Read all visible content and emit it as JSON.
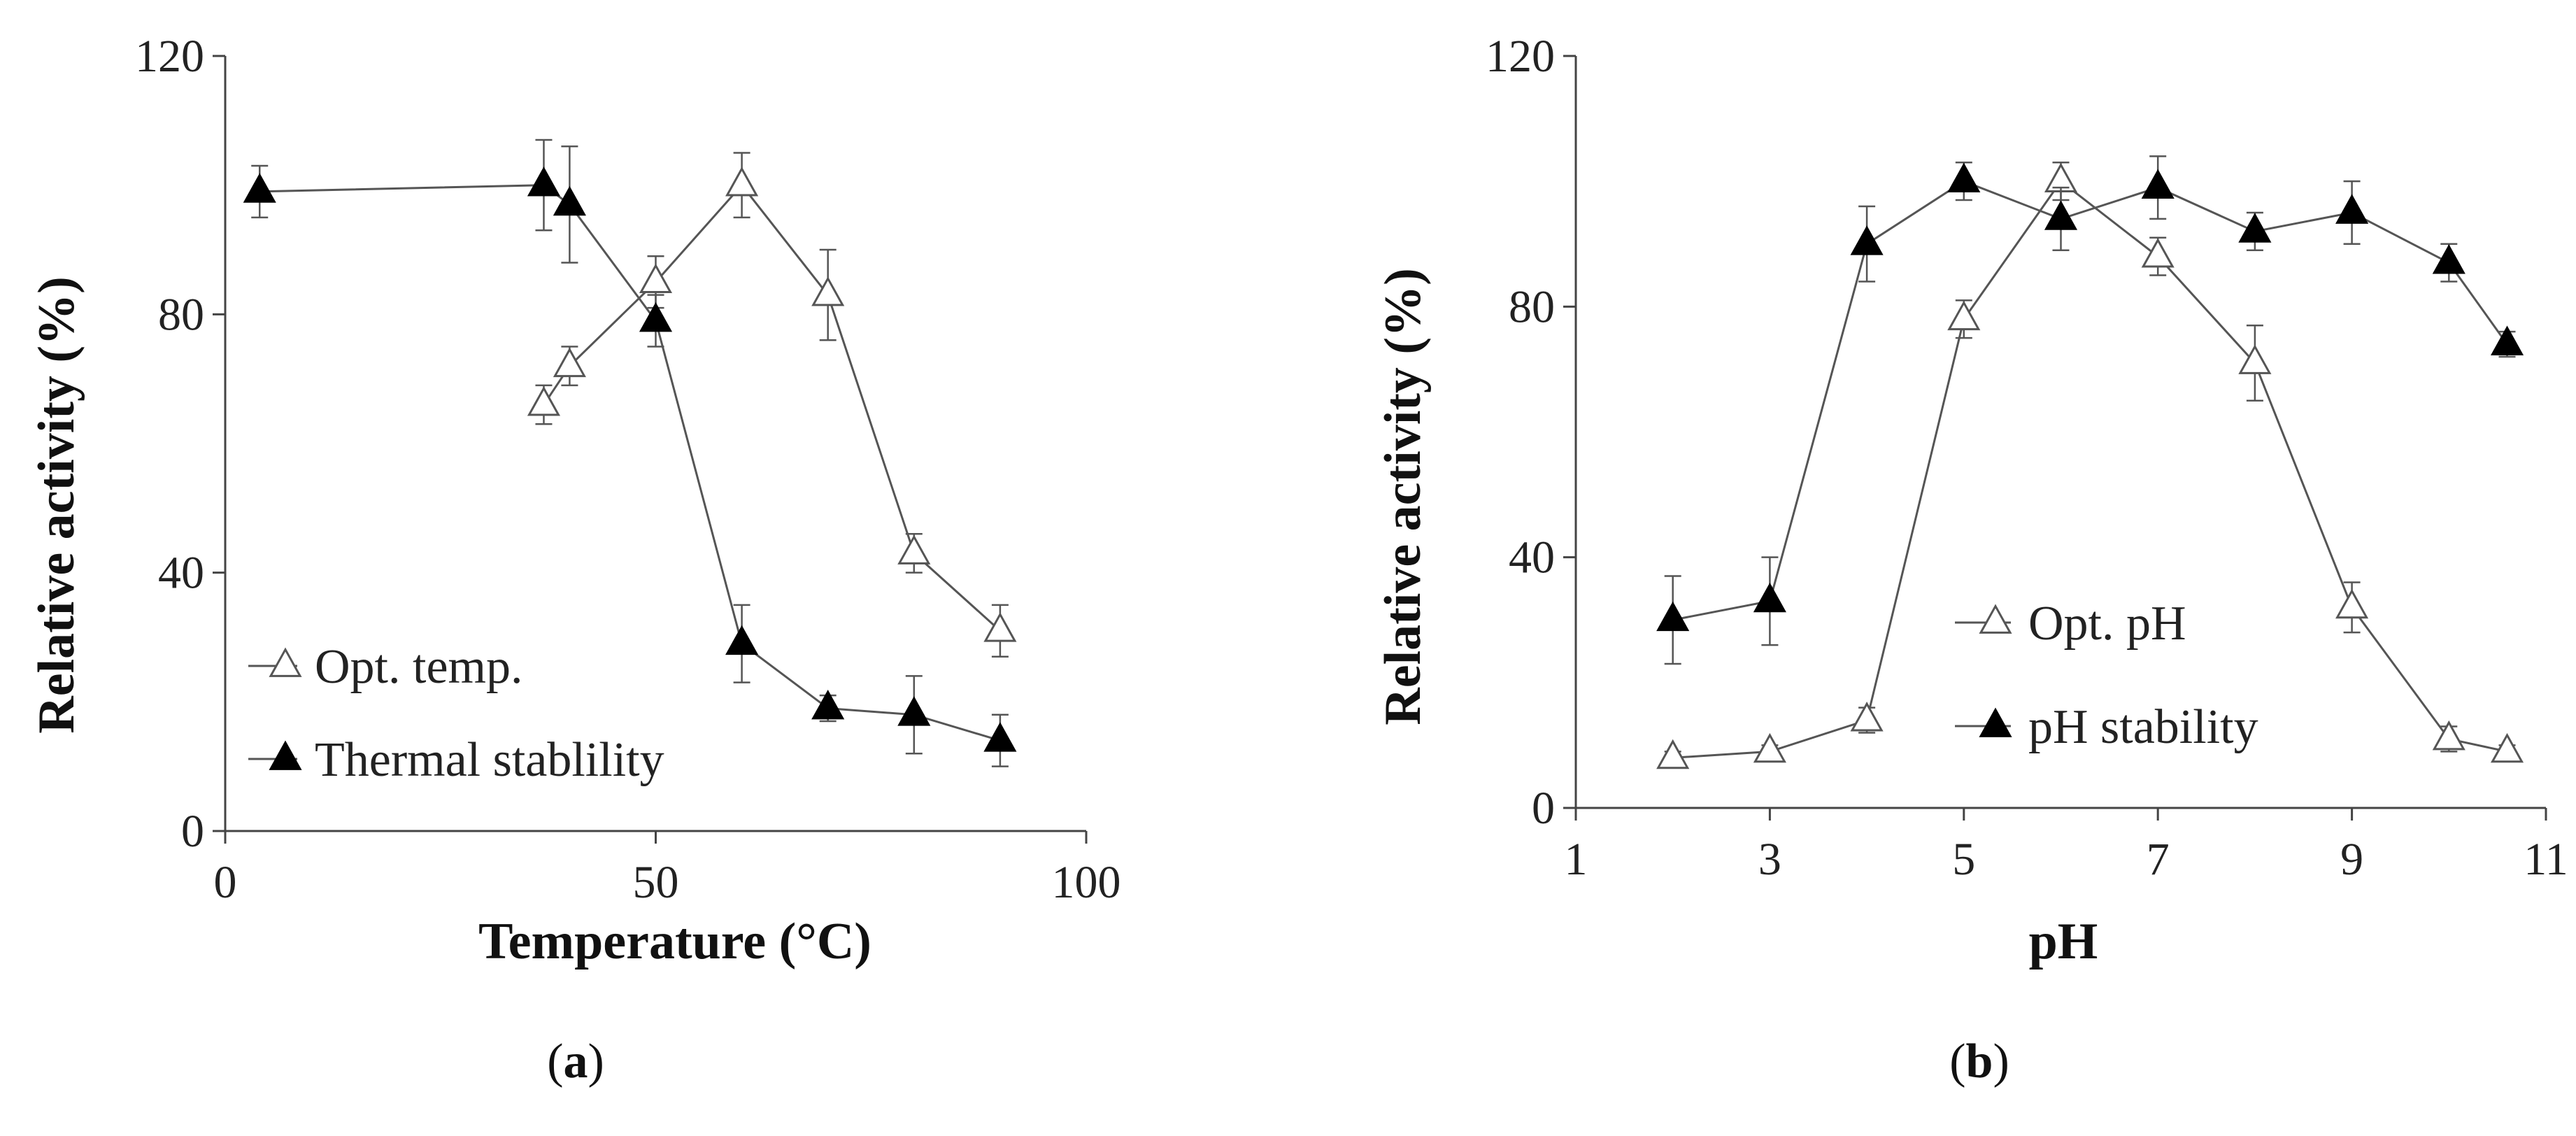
{
  "chart_data": [
    {
      "id": "a",
      "type": "line",
      "caption": "a",
      "xlabel": "Temperature (°C)",
      "ylabel": "Relative activity (%)",
      "xlim": [
        0,
        100
      ],
      "ylim": [
        0,
        120
      ],
      "xticks": [
        0,
        50,
        100
      ],
      "yticks": [
        0,
        40,
        80,
        120
      ],
      "legend_position": "bottom-left",
      "series": [
        {
          "name": "Opt. temp.",
          "marker": "open-triangle",
          "x": [
            37,
            40,
            50,
            60,
            70,
            80,
            90
          ],
          "y": [
            66,
            72,
            85,
            100,
            83,
            43,
            31
          ],
          "err": [
            3,
            3,
            4,
            5,
            7,
            3,
            4
          ]
        },
        {
          "name": "Thermal stablility",
          "marker": "filled-triangle",
          "x": [
            4,
            37,
            40,
            50,
            60,
            70,
            80,
            90
          ],
          "y": [
            99,
            100,
            97,
            79,
            29,
            19,
            18,
            14
          ],
          "err": [
            4,
            7,
            9,
            4,
            6,
            2,
            6,
            4
          ]
        }
      ]
    },
    {
      "id": "b",
      "type": "line",
      "caption": "b",
      "xlabel": "pH",
      "ylabel": "Relative activity (%)",
      "xlim": [
        1,
        11
      ],
      "ylim": [
        0,
        120
      ],
      "xticks": [
        1,
        3,
        5,
        7,
        9,
        11
      ],
      "yticks": [
        0,
        40,
        80,
        120
      ],
      "legend_position": "bottom-center",
      "series": [
        {
          "name": "Opt. pH",
          "marker": "open-triangle",
          "x": [
            2,
            3,
            4,
            5,
            6,
            7,
            8,
            9,
            10,
            10.6
          ],
          "y": [
            8,
            9,
            14,
            78,
            100,
            88,
            71,
            32,
            11,
            9
          ],
          "err": [
            1,
            1,
            2,
            3,
            3,
            3,
            6,
            4,
            2,
            1
          ]
        },
        {
          "name": "pH stability",
          "marker": "filled-triangle",
          "x": [
            2,
            3,
            4,
            5,
            6,
            7,
            8,
            9,
            10,
            10.6
          ],
          "y": [
            30,
            33,
            90,
            100,
            94,
            99,
            92,
            95,
            87,
            74
          ],
          "err": [
            7,
            7,
            6,
            3,
            5,
            5,
            3,
            5,
            3,
            2
          ]
        }
      ]
    }
  ]
}
